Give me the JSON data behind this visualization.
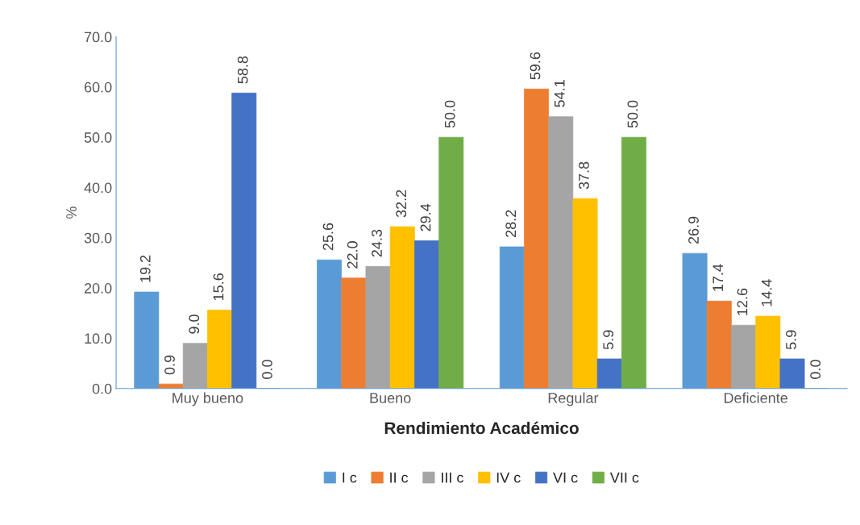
{
  "chart_data": {
    "type": "bar",
    "xlabel": "Rendimiento Académico",
    "ylabel": "%",
    "categories": [
      "Muy bueno",
      "Bueno",
      "Regular",
      "Deficiente"
    ],
    "series": [
      {
        "name": "I c",
        "color": "#5b9bd5",
        "values": [
          19.2,
          25.6,
          28.2,
          26.9
        ],
        "value_labels": [
          "19.2",
          "25.6",
          "28.2",
          "26.9"
        ]
      },
      {
        "name": "II c",
        "color": "#ed7d31",
        "values": [
          0.9,
          22.0,
          59.6,
          17.4
        ],
        "value_labels": [
          "0.9",
          "22.0",
          "59.6",
          "17.4"
        ]
      },
      {
        "name": "III c",
        "color": "#a5a5a5",
        "values": [
          9.0,
          24.3,
          54.1,
          12.6
        ],
        "value_labels": [
          "9.0",
          "24.3",
          "54.1",
          "12.6"
        ]
      },
      {
        "name": "IV c",
        "color": "#ffc000",
        "values": [
          15.6,
          32.2,
          37.8,
          14.4
        ],
        "value_labels": [
          "15.6",
          "32.2",
          "37.8",
          "14.4"
        ]
      },
      {
        "name": "VI c",
        "color": "#4472c4",
        "values": [
          58.8,
          29.4,
          5.9,
          5.9
        ],
        "value_labels": [
          "58.8",
          "29.4",
          "5.9",
          "5.9"
        ]
      },
      {
        "name": "VII c",
        "color": "#70ad47",
        "values": [
          0.0,
          50.0,
          50.0,
          0.0
        ],
        "value_labels": [
          "0.0",
          "50.0",
          "50.0",
          "0.0"
        ]
      }
    ],
    "ylim": [
      0,
      70
    ],
    "yticks": [
      {
        "value": 0,
        "label": "0.0"
      },
      {
        "value": 10,
        "label": "10.0"
      },
      {
        "value": 20,
        "label": "20.0"
      },
      {
        "value": 30,
        "label": "30.0"
      },
      {
        "value": 40,
        "label": "40.0"
      },
      {
        "value": 50,
        "label": "50.0"
      },
      {
        "value": 60,
        "label": "60.0"
      },
      {
        "value": 70,
        "label": "70.0"
      }
    ],
    "grid": false,
    "legend": "bottom"
  }
}
